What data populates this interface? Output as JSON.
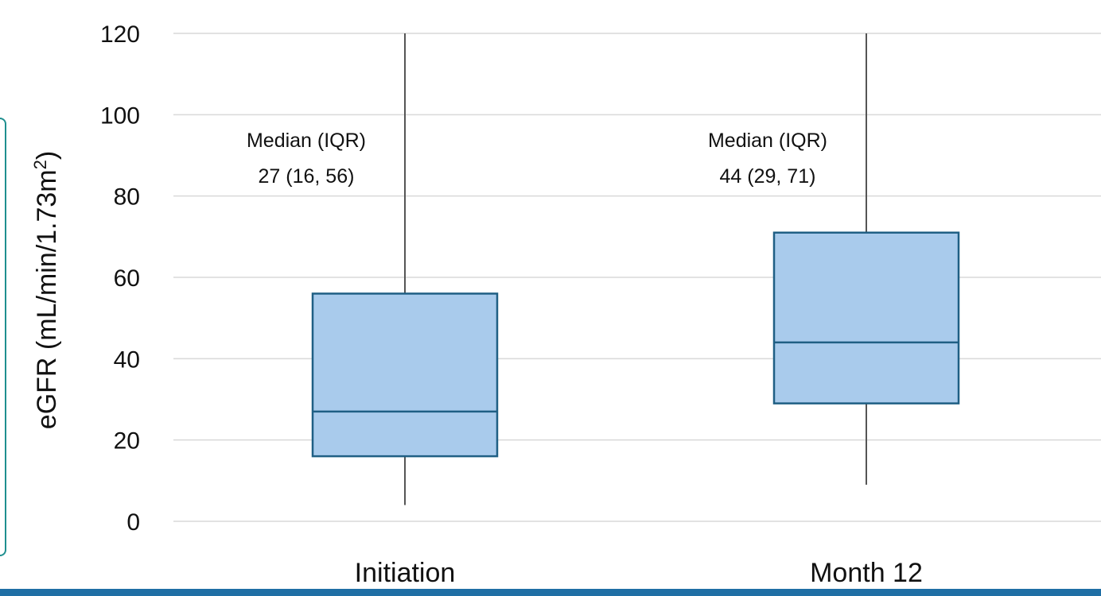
{
  "chart_data": {
    "type": "box",
    "categories": [
      "Initiation",
      "Month 12"
    ],
    "boxes": [
      {
        "category": "Initiation",
        "min": 4,
        "q1": 16,
        "median": 27,
        "q3": 56,
        "max": 120,
        "annotation": [
          "Median (IQR)",
          "27 (16, 56)"
        ]
      },
      {
        "category": "Month 12",
        "min": 9,
        "q1": 29,
        "median": 44,
        "q3": 71,
        "max": 120,
        "annotation": [
          "Median (IQR)",
          "44 (29, 71)"
        ]
      }
    ],
    "ylabel": "eGFR (mL/min/1.73m",
    "ylabel_superscript": "2",
    "ylabel_suffix": ")",
    "xlabel": "",
    "ylim": [
      0,
      120
    ],
    "yticks": [
      0,
      20,
      40,
      60,
      80,
      100,
      120
    ],
    "grid": true,
    "legend": "none",
    "colors": {
      "box_fill": "#a9cbec",
      "box_stroke": "#1f5f84",
      "whisker": "#555555",
      "grid": "#d9d9d9"
    }
  }
}
